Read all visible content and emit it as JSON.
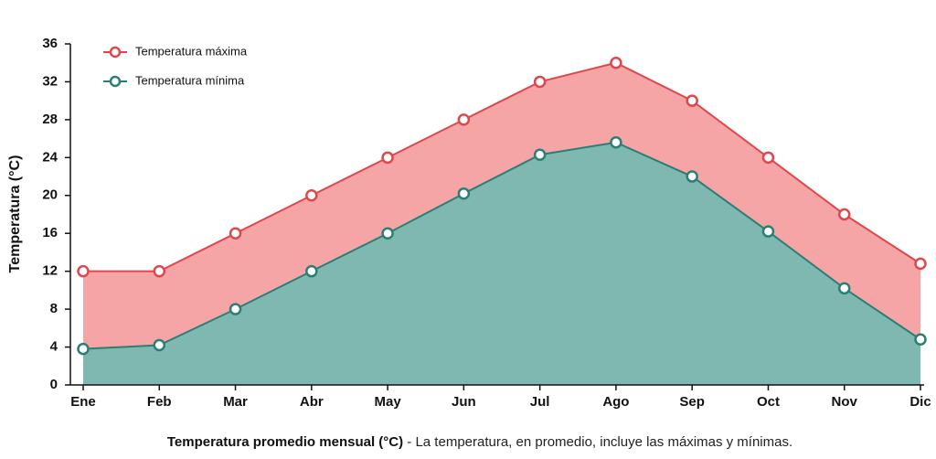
{
  "chart_data": {
    "type": "area",
    "y_label": "Temperatura (°C)",
    "caption_title": "Temperatura promedio mensual (°C)",
    "caption": "- La temperatura, en promedio, incluye las máximas y mínimas.",
    "categories": [
      "Ene",
      "Feb",
      "Mar",
      "Abr",
      "May",
      "Jun",
      "Jul",
      "Ago",
      "Sep",
      "Oct",
      "Nov",
      "Dic"
    ],
    "series": [
      {
        "name": "Temperatura máxima",
        "color": "#e0474c",
        "fill": "#f6a5a6",
        "values": [
          12,
          12,
          16,
          20,
          24,
          28,
          32,
          34,
          30,
          24,
          18,
          12.8
        ]
      },
      {
        "name": "Temperatura mínima",
        "color": "#2a7f74",
        "fill": "#7fb8b0",
        "values": [
          3.8,
          4.2,
          8,
          12,
          16,
          20.2,
          24.3,
          25.6,
          22,
          16.2,
          10.2,
          4.8
        ]
      }
    ],
    "ylim": [
      0,
      36
    ],
    "yticks": [
      0,
      4,
      8,
      12,
      16,
      20,
      24,
      28,
      32,
      36
    ],
    "grid": false,
    "legend": "upper left"
  }
}
